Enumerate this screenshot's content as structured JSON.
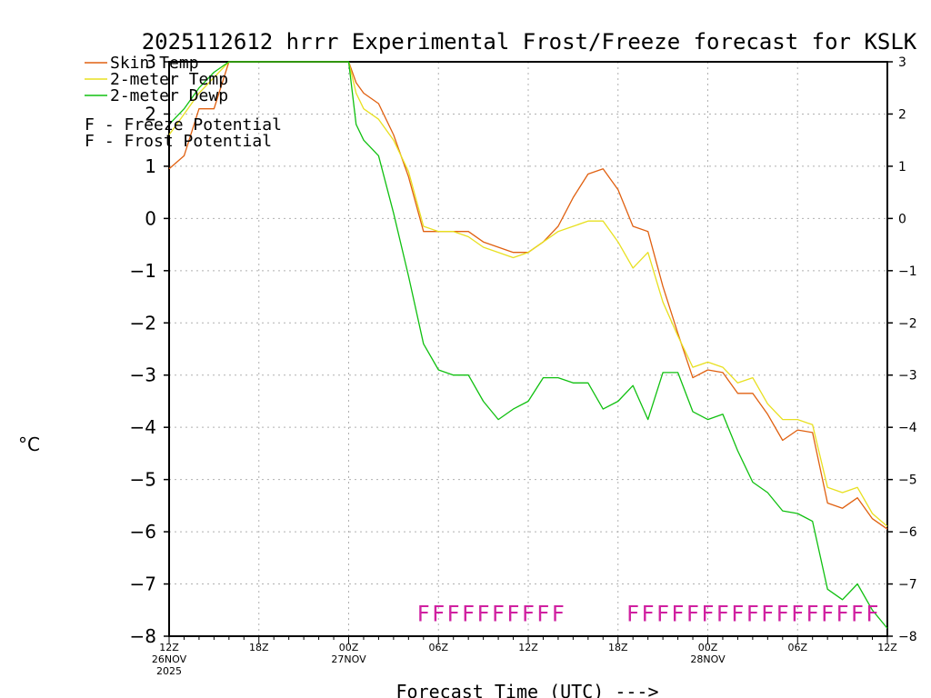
{
  "chart_data": {
    "type": "line",
    "title": "2025112612 hrrr Experimental Frost/Freeze forecast for KSLK",
    "xlabel": "Forecast Time (UTC) --->",
    "ylabel": "°C",
    "ylim": [
      -8,
      3
    ],
    "xlim": [
      0,
      48
    ],
    "yticks": [
      -8,
      -7,
      -6,
      -5,
      -4,
      -3,
      -2,
      -1,
      0,
      1,
      2,
      3
    ],
    "grid": true,
    "x_tick_labels": [
      {
        "x": 0,
        "lines": [
          "12Z",
          "26NOV",
          "2025"
        ]
      },
      {
        "x": 6,
        "lines": [
          "18Z"
        ]
      },
      {
        "x": 12,
        "lines": [
          "00Z",
          "27NOV"
        ]
      },
      {
        "x": 18,
        "lines": [
          "06Z"
        ]
      },
      {
        "x": 24,
        "lines": [
          "12Z"
        ]
      },
      {
        "x": 30,
        "lines": [
          "18Z"
        ]
      },
      {
        "x": 36,
        "lines": [
          "00Z",
          "28NOV"
        ]
      },
      {
        "x": 42,
        "lines": [
          "06Z"
        ]
      },
      {
        "x": 48,
        "lines": [
          "12Z"
        ]
      }
    ],
    "series": [
      {
        "name": "Skin Temp",
        "color": "#e06010",
        "points": [
          [
            0,
            0.95
          ],
          [
            1,
            1.2
          ],
          [
            2,
            2.1
          ],
          [
            3,
            2.1
          ],
          [
            4,
            3.2
          ],
          [
            12,
            3.2
          ],
          [
            12.5,
            2.6
          ],
          [
            13,
            2.4
          ],
          [
            14,
            2.2
          ],
          [
            15,
            1.6
          ],
          [
            16,
            0.8
          ],
          [
            17,
            -0.25
          ],
          [
            18,
            -0.25
          ],
          [
            19,
            -0.25
          ],
          [
            20,
            -0.25
          ],
          [
            21,
            -0.45
          ],
          [
            22,
            -0.55
          ],
          [
            23,
            -0.65
          ],
          [
            24,
            -0.65
          ],
          [
            25,
            -0.45
          ],
          [
            26,
            -0.15
          ],
          [
            27,
            0.4
          ],
          [
            28,
            0.85
          ],
          [
            29,
            0.95
          ],
          [
            30,
            0.55
          ],
          [
            31,
            -0.15
          ],
          [
            32,
            -0.25
          ],
          [
            33,
            -1.3
          ],
          [
            34,
            -2.2
          ],
          [
            35,
            -3.05
          ],
          [
            36,
            -2.9
          ],
          [
            37,
            -2.95
          ],
          [
            38,
            -3.35
          ],
          [
            39,
            -3.35
          ],
          [
            40,
            -3.75
          ],
          [
            41,
            -4.25
          ],
          [
            42,
            -4.05
          ],
          [
            43,
            -4.1
          ],
          [
            44,
            -5.45
          ],
          [
            45,
            -5.55
          ],
          [
            46,
            -5.35
          ],
          [
            47,
            -5.75
          ],
          [
            48,
            -5.95
          ]
        ]
      },
      {
        "name": "2-meter Temp",
        "color": "#e8e020",
        "points": [
          [
            0,
            1.6
          ],
          [
            1,
            2.0
          ],
          [
            2,
            2.4
          ],
          [
            3,
            2.7
          ],
          [
            4,
            3.2
          ],
          [
            12,
            3.2
          ],
          [
            12.5,
            2.4
          ],
          [
            13,
            2.1
          ],
          [
            14,
            1.9
          ],
          [
            15,
            1.5
          ],
          [
            16,
            0.9
          ],
          [
            17,
            -0.15
          ],
          [
            18,
            -0.25
          ],
          [
            19,
            -0.25
          ],
          [
            20,
            -0.35
          ],
          [
            21,
            -0.55
          ],
          [
            22,
            -0.65
          ],
          [
            23,
            -0.75
          ],
          [
            24,
            -0.65
          ],
          [
            25,
            -0.45
          ],
          [
            26,
            -0.25
          ],
          [
            27,
            -0.15
          ],
          [
            28,
            -0.05
          ],
          [
            29,
            -0.05
          ],
          [
            30,
            -0.45
          ],
          [
            31,
            -0.95
          ],
          [
            32,
            -0.65
          ],
          [
            33,
            -1.6
          ],
          [
            34,
            -2.25
          ],
          [
            35,
            -2.85
          ],
          [
            36,
            -2.75
          ],
          [
            37,
            -2.85
          ],
          [
            38,
            -3.15
          ],
          [
            39,
            -3.05
          ],
          [
            40,
            -3.55
          ],
          [
            41,
            -3.85
          ],
          [
            42,
            -3.85
          ],
          [
            43,
            -3.95
          ],
          [
            44,
            -5.15
          ],
          [
            45,
            -5.25
          ],
          [
            46,
            -5.15
          ],
          [
            47,
            -5.65
          ],
          [
            48,
            -5.9
          ]
        ]
      },
      {
        "name": "2-meter Dewp",
        "color": "#10c010",
        "points": [
          [
            0,
            1.8
          ],
          [
            1,
            2.1
          ],
          [
            2,
            2.5
          ],
          [
            3,
            2.8
          ],
          [
            4,
            3.2
          ],
          [
            12,
            3.2
          ],
          [
            12.5,
            1.8
          ],
          [
            13,
            1.5
          ],
          [
            14,
            1.2
          ],
          [
            15,
            0.1
          ],
          [
            16,
            -1.1
          ],
          [
            17,
            -2.4
          ],
          [
            18,
            -2.9
          ],
          [
            19,
            -3.0
          ],
          [
            20,
            -3.0
          ],
          [
            21,
            -3.5
          ],
          [
            22,
            -3.85
          ],
          [
            23,
            -3.65
          ],
          [
            24,
            -3.5
          ],
          [
            25,
            -3.05
          ],
          [
            26,
            -3.05
          ],
          [
            27,
            -3.15
          ],
          [
            28,
            -3.15
          ],
          [
            29,
            -3.65
          ],
          [
            30,
            -3.5
          ],
          [
            31,
            -3.2
          ],
          [
            32,
            -3.85
          ],
          [
            33,
            -2.95
          ],
          [
            34,
            -2.95
          ],
          [
            35,
            -3.7
          ],
          [
            36,
            -3.85
          ],
          [
            37,
            -3.75
          ],
          [
            38,
            -4.45
          ],
          [
            39,
            -5.05
          ],
          [
            40,
            -5.25
          ],
          [
            41,
            -5.6
          ],
          [
            42,
            -5.65
          ],
          [
            43,
            -5.8
          ],
          [
            44,
            -7.1
          ],
          [
            45,
            -7.3
          ],
          [
            46,
            -7.0
          ],
          [
            47,
            -7.5
          ],
          [
            48,
            -7.85
          ]
        ]
      }
    ],
    "legend": [
      {
        "label": "Skin Temp",
        "color": "#e06010"
      },
      {
        "label": "2-meter Temp",
        "color": "#e8e020"
      },
      {
        "label": "2-meter Dewp",
        "color": "#10c010"
      }
    ],
    "markers_legend": [
      {
        "symbol": "F",
        "label": " - Freeze Potential",
        "color": "#d020a0"
      },
      {
        "symbol": "F",
        "label": " - Frost Potential",
        "color": "#4060e0"
      }
    ],
    "freeze_markers": {
      "symbol": "F",
      "color": "#d020a0",
      "y": -7.5,
      "x": [
        17,
        18,
        19,
        20,
        21,
        22,
        23,
        24,
        25,
        26,
        31,
        32,
        33,
        34,
        35,
        36,
        37,
        38,
        39,
        40,
        41,
        42,
        43,
        44,
        45,
        46,
        47
      ]
    }
  }
}
